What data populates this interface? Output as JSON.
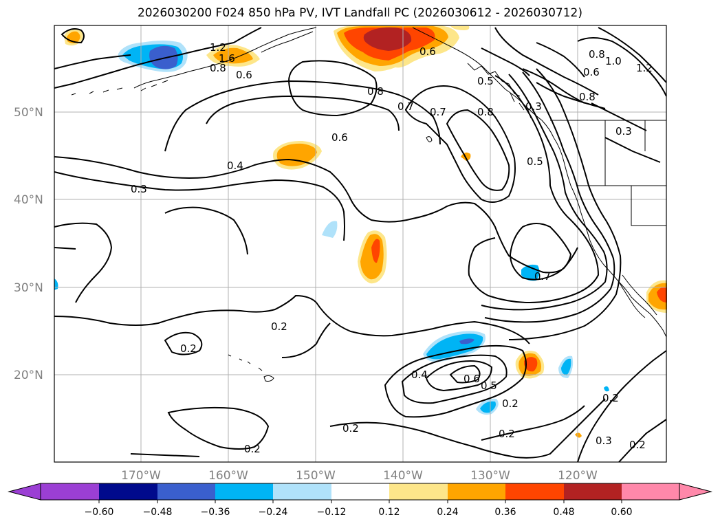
{
  "title": "2026030200 F024 850 hPa PV, IVT Landfall PC (2026030612 - 2026030712)",
  "lat_labels": [
    "50°N",
    "40°N",
    "30°N",
    "20°N"
  ],
  "lon_labels": [
    "170°W",
    "160°W",
    "150°W",
    "140°W",
    "130°W",
    "120°W"
  ],
  "contour_labels": [
    "1.2",
    "1.6",
    "0.8",
    "0.6",
    "0.8",
    "0.7",
    "0.7",
    "0.8",
    "0.6",
    "0.6",
    "0.5",
    "0.3",
    "0.4",
    "0.3",
    "0.5",
    "0.7",
    "1.0",
    "1.2",
    "0.8",
    "0.6",
    "0.8",
    "0.3",
    "0.2",
    "0.2",
    "0.4",
    "0.6",
    "0.5",
    "0.2",
    "0.2",
    "0.2",
    "0.2",
    "0.3",
    "0.2",
    "0.2"
  ],
  "colorbar": {
    "ticks": [
      "−0.60",
      "−0.48",
      "−0.36",
      "−0.24",
      "−0.12",
      "0.12",
      "0.24",
      "0.36",
      "0.48",
      "0.60"
    ],
    "colors": [
      "#9b3fd4",
      "#000a8c",
      "#3a5fcd",
      "#00b4f5",
      "#b0e2fa",
      "#ffffff",
      "#fde68a",
      "#ffa500",
      "#ff4500",
      "#b22222",
      "#ff88aa"
    ]
  },
  "legend_colors": {
    "neg_strong": "#3a5fcd",
    "neg_mid": "#00b4f5",
    "neg_weak": "#b0e2fa",
    "pos_weak": "#fde68a",
    "pos_mid": "#ffa500",
    "pos_strong": "#ff4500",
    "pos_max": "#b22222"
  }
}
